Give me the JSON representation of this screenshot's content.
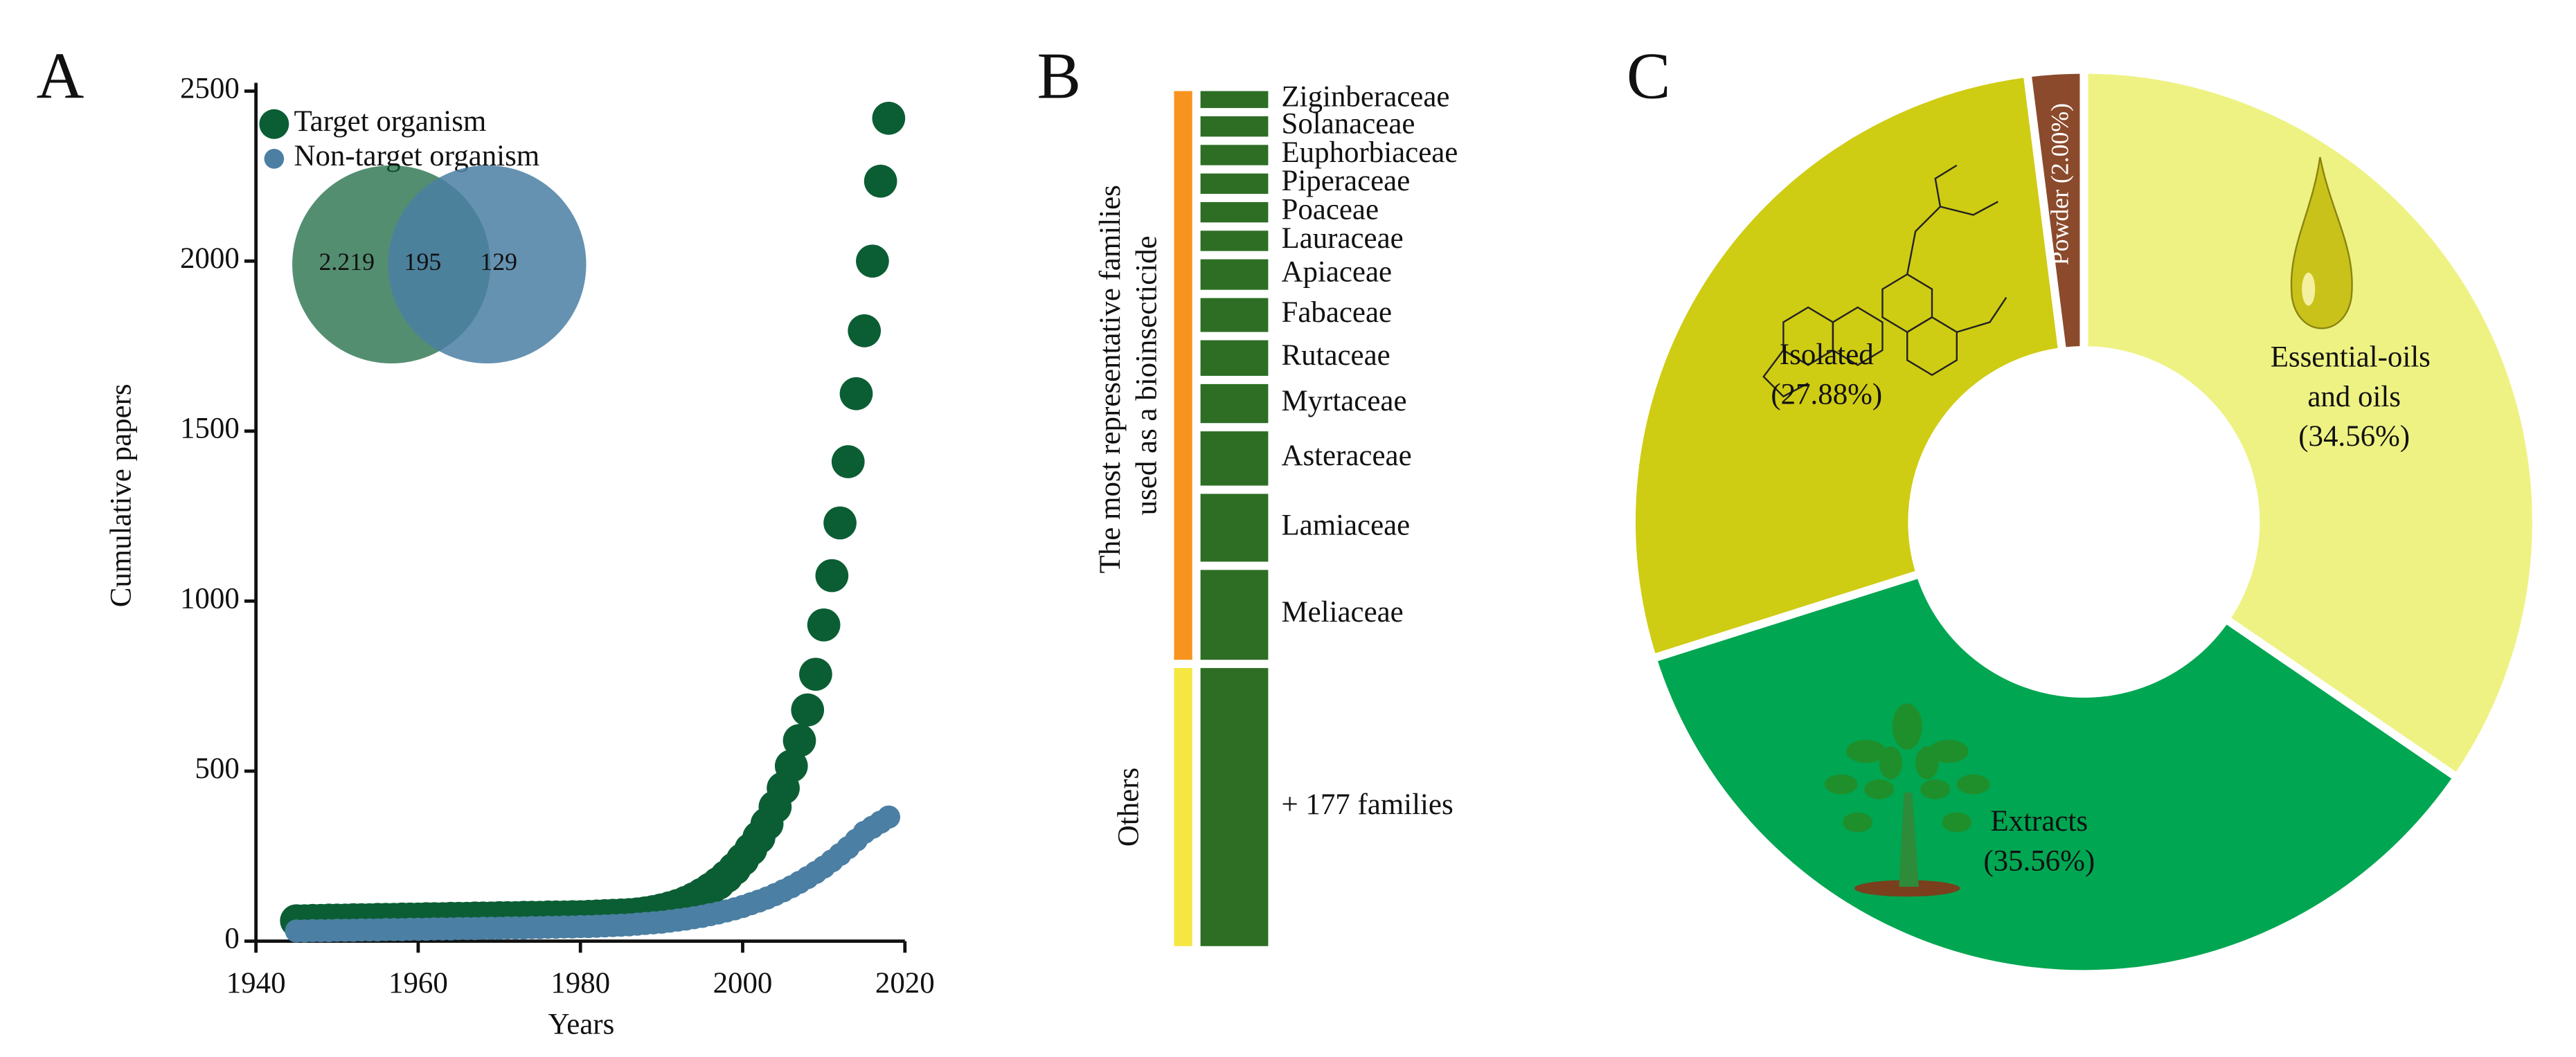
{
  "chart_data": [
    {
      "type": "scatter",
      "panel": "A",
      "x_label": "Years",
      "y_label": "Cumulative papers",
      "xlim": [
        1940,
        2020
      ],
      "xticks": [
        1940,
        1960,
        1980,
        2000,
        2020
      ],
      "ylim": [
        0,
        2500
      ],
      "yticks": [
        0,
        500,
        1000,
        1500,
        2000,
        2500
      ],
      "x": [
        1945,
        1946,
        1947,
        1948,
        1949,
        1950,
        1951,
        1952,
        1953,
        1954,
        1955,
        1956,
        1957,
        1958,
        1959,
        1960,
        1961,
        1962,
        1963,
        1964,
        1965,
        1966,
        1967,
        1968,
        1969,
        1970,
        1971,
        1972,
        1973,
        1974,
        1975,
        1976,
        1977,
        1978,
        1979,
        1980,
        1981,
        1982,
        1983,
        1984,
        1985,
        1986,
        1987,
        1988,
        1989,
        1990,
        1991,
        1992,
        1993,
        1994,
        1995,
        1996,
        1997,
        1998,
        1999,
        2000,
        2001,
        2002,
        2003,
        2004,
        2005,
        2006,
        2007,
        2008,
        2009,
        2010,
        2011,
        2012,
        2013,
        2014,
        2015,
        2016,
        2017,
        2018
      ],
      "series": [
        {
          "name": "Target organism",
          "color": "#0b5e34",
          "values": [
            60,
            60,
            61,
            61,
            62,
            62,
            62,
            63,
            63,
            63,
            64,
            64,
            64,
            65,
            65,
            65,
            66,
            66,
            66,
            67,
            67,
            67,
            68,
            68,
            68,
            69,
            69,
            69,
            70,
            70,
            70,
            71,
            71,
            71,
            72,
            72,
            73,
            74,
            75,
            76,
            77,
            78,
            80,
            83,
            87,
            92,
            98,
            105,
            114,
            125,
            138,
            153,
            170,
            190,
            213,
            240,
            270,
            305,
            345,
            395,
            450,
            515,
            590,
            680,
            785,
            930,
            1075,
            1230,
            1410,
            1610,
            1795,
            2000,
            2235,
            2420
          ]
        },
        {
          "name": "Non-target organism",
          "color": "#4b7fa3",
          "values": [
            30,
            30,
            31,
            31,
            31,
            32,
            32,
            32,
            33,
            33,
            33,
            34,
            34,
            34,
            35,
            35,
            35,
            36,
            36,
            36,
            37,
            37,
            37,
            38,
            38,
            38,
            39,
            39,
            39,
            40,
            40,
            41,
            41,
            42,
            42,
            43,
            43,
            44,
            45,
            46,
            47,
            48,
            50,
            52,
            54,
            56,
            59,
            62,
            65,
            69,
            73,
            78,
            83,
            89,
            95,
            102,
            110,
            118,
            127,
            137,
            148,
            160,
            173,
            187,
            202,
            218,
            236,
            255,
            275,
            297,
            320,
            335,
            350,
            365
          ]
        }
      ],
      "venn_labels": [
        "2.219",
        "195",
        "129"
      ]
    },
    {
      "type": "stacked-list",
      "panel": "B",
      "color": "#2d6e24",
      "groups": [
        {
          "name": "The most representative families used as a bioinsecticide",
          "color": "#f7941d",
          "categories": [
            "Ziginberaceae",
            "Solanaceae",
            "Euphorbiaceae",
            "Piperaceae",
            "Poaceae",
            "Lauraceae",
            "Apiaceae",
            "Fabaceae",
            "Rutaceae",
            "Myrtaceae",
            "Asteraceae",
            "Lamiaceae",
            "Meliaceae"
          ],
          "values": [
            10,
            12,
            12,
            12,
            12,
            12,
            18,
            20,
            21,
            23,
            32,
            40,
            53
          ]
        },
        {
          "name": "Others",
          "color": "#f5e642",
          "categories": [
            "+ 177 families"
          ],
          "values": [
            164
          ]
        }
      ]
    },
    {
      "type": "donut",
      "panel": "C",
      "categories": [
        "Essential-oils and oils",
        "Extracts",
        "Isolated",
        "Powder"
      ],
      "values": [
        34.56,
        35.56,
        27.88,
        2.0
      ],
      "value_labels": [
        "(34.56%)",
        "(35.56%)",
        "(27.88%)",
        "(2.00%)"
      ],
      "colors": [
        "#eef283",
        "#00a651",
        "#cfcc14",
        "#8b4a2b"
      ]
    }
  ]
}
